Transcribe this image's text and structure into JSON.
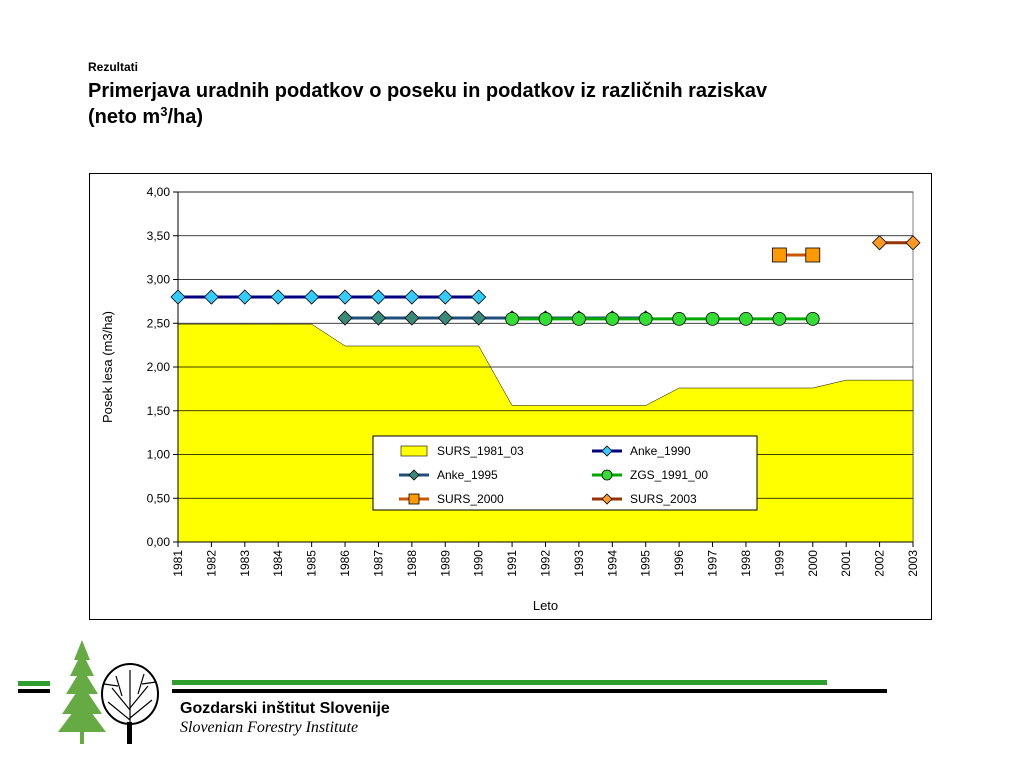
{
  "header": {
    "kicker": "Rezultati",
    "title_line1": "Primerjava uradnih podatkov o poseku in podatkov iz različnih raziskav",
    "title_line2_pre": "(neto m",
    "title_line2_sup": "3",
    "title_line2_post": "/ha)"
  },
  "footer": {
    "institute_sl": "Gozdarski inštitut Slovenije",
    "institute_en": "Slovenian Forestry Institute",
    "logo_icon": "trees-logo-icon",
    "line_colors": {
      "green": "#2e9e2e",
      "black": "#000000"
    }
  },
  "chart_data": {
    "type": "line",
    "xlabel": "Leto",
    "ylabel": "Posek lesa (m3/ha)",
    "ylim": [
      0,
      4
    ],
    "ytick_labels": [
      "0,00",
      "0,50",
      "1,00",
      "1,50",
      "2,00",
      "2,50",
      "3,00",
      "3,50",
      "4,00"
    ],
    "categories": [
      "1981",
      "1982",
      "1983",
      "1984",
      "1985",
      "1986",
      "1987",
      "1988",
      "1989",
      "1990",
      "1991",
      "1992",
      "1993",
      "1994",
      "1995",
      "1996",
      "1997",
      "1998",
      "1999",
      "2000",
      "2001",
      "2002",
      "2003"
    ],
    "grid": true,
    "legend_position": "bottom-center",
    "series": [
      {
        "name": "SURS_1981_03",
        "kind": "area",
        "color": "#ffff00",
        "marker": "none",
        "values": [
          2.49,
          2.49,
          2.49,
          2.49,
          2.49,
          2.24,
          2.24,
          2.24,
          2.24,
          2.24,
          1.56,
          1.56,
          1.56,
          1.56,
          1.56,
          1.76,
          1.76,
          1.76,
          1.76,
          1.76,
          1.85,
          1.85,
          1.85
        ]
      },
      {
        "name": "Anke_1990",
        "kind": "line",
        "color": "#000080",
        "markerColor": "#33ccff",
        "marker": "diamond",
        "values": [
          2.8,
          2.8,
          2.8,
          2.8,
          2.8,
          2.8,
          2.8,
          2.8,
          2.8,
          2.8,
          null,
          null,
          null,
          null,
          null,
          null,
          null,
          null,
          null,
          null,
          null,
          null,
          null
        ]
      },
      {
        "name": "Anke_1995",
        "kind": "line",
        "color": "#1f4e79",
        "markerColor": "#3a8a7a",
        "marker": "diamond",
        "values": [
          null,
          null,
          null,
          null,
          null,
          2.56,
          2.56,
          2.56,
          2.56,
          2.56,
          2.56,
          2.56,
          2.56,
          2.56,
          2.56,
          null,
          null,
          null,
          null,
          null,
          null,
          null,
          null
        ]
      },
      {
        "name": "ZGS_1991_00",
        "kind": "line",
        "color": "#00aa00",
        "markerColor": "#33dd33",
        "marker": "circle",
        "values": [
          null,
          null,
          null,
          null,
          null,
          null,
          null,
          null,
          null,
          null,
          2.55,
          2.55,
          2.55,
          2.55,
          2.55,
          2.55,
          2.55,
          2.55,
          2.55,
          2.55,
          null,
          null,
          null
        ]
      },
      {
        "name": "SURS_2000",
        "kind": "line",
        "color": "#cc5500",
        "markerColor": "#ff9900",
        "marker": "square",
        "values": [
          null,
          null,
          null,
          null,
          null,
          null,
          null,
          null,
          null,
          null,
          null,
          null,
          null,
          null,
          null,
          null,
          null,
          null,
          3.28,
          3.28,
          null,
          null,
          null
        ]
      },
      {
        "name": "SURS_2003",
        "kind": "line",
        "color": "#993300",
        "markerColor": "#ff9922",
        "marker": "diamond",
        "values": [
          null,
          null,
          null,
          null,
          null,
          null,
          null,
          null,
          null,
          null,
          null,
          null,
          null,
          null,
          null,
          null,
          null,
          null,
          null,
          null,
          null,
          3.42,
          3.42
        ]
      }
    ]
  }
}
